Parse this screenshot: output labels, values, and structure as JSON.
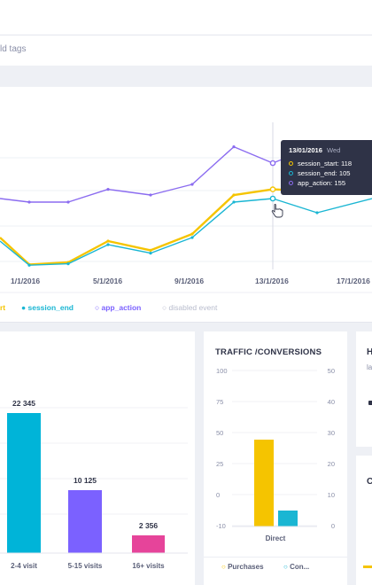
{
  "tags": {
    "placeholder_fragment": "ld tags"
  },
  "main_chart": {
    "x_tick_labels": [
      "1/1/2016",
      "5/1/2016",
      "9/1/2016",
      "13/1/2016",
      "17/1/2016"
    ],
    "legend": {
      "session_start_fragment": "rt",
      "session_end": "session_end",
      "app_action": "app_action",
      "disabled": "disabled event"
    },
    "tooltip": {
      "date": "13/01/2016",
      "day": "Wed",
      "rows": [
        {
          "label": "session_start: 118",
          "color": "#f5c400"
        },
        {
          "label": "session_end: 105",
          "color": "#1ab6d3"
        },
        {
          "label": "app_action: 155",
          "color": "#8b6cf0"
        }
      ]
    }
  },
  "colors": {
    "session_start": "#f5c400",
    "session_end": "#1ab6d3",
    "app_action": "#8b6cf0",
    "bar_cyan": "#00b4d8",
    "bar_purple": "#7b61ff",
    "bar_pink": "#e6449a",
    "disabled": "#c0c4d4"
  },
  "chart_data": [
    {
      "type": "line",
      "x": [
        "1/1/2016",
        "3/1/2016",
        "5/1/2016",
        "7/1/2016",
        "9/1/2016",
        "11/1/2016",
        "12/1/2016",
        "13/1/2016",
        "15/1/2016",
        "17/1/2016"
      ],
      "series": [
        {
          "name": "session_start",
          "values": [
            50,
            12,
            15,
            45,
            32,
            55,
            110,
            118,
            115,
            118
          ]
        },
        {
          "name": "session_end",
          "values": [
            45,
            11,
            13,
            40,
            28,
            50,
            100,
            105,
            85,
            105
          ]
        },
        {
          "name": "app_action",
          "values": [
            105,
            100,
            100,
            118,
            110,
            125,
            178,
            155,
            180,
            140
          ]
        }
      ],
      "xlabel": "",
      "ylabel": ""
    },
    {
      "type": "bar",
      "categories": [
        "2-4 visit",
        "5-15 visits",
        "16+ visits"
      ],
      "values": [
        22345,
        10125,
        2356
      ],
      "value_labels": [
        "22 345",
        "10 125",
        "2 356"
      ]
    },
    {
      "type": "bar",
      "title": "TRAFFIC /CONVERSIONS",
      "categories": [
        "Direct"
      ],
      "series": [
        {
          "name": "Purchases",
          "values": [
            45
          ]
        },
        {
          "name": "Con...",
          "values": [
            5
          ]
        }
      ],
      "y_left_ticks": [
        "100",
        "75",
        "50",
        "25",
        "0",
        "-10"
      ],
      "y_right_ticks": [
        "50",
        "40",
        "30",
        "20",
        "10",
        "0"
      ],
      "ylim": [
        -10,
        100
      ]
    }
  ],
  "visits_card": {
    "bar_labels": [
      "22 345",
      "10 125",
      "2 356"
    ],
    "categories": [
      "2-4 visit",
      "5-15 visits",
      "16+ visits"
    ]
  },
  "traffic_card": {
    "title": "TRAFFIC /CONVERSIONS",
    "y_left": [
      "100",
      "75",
      "50",
      "25",
      "0",
      "-10"
    ],
    "y_right": [
      "50",
      "40",
      "30",
      "20",
      "10",
      "0"
    ],
    "category": "Direct",
    "legend_purchases": "Purchases",
    "legend_con": "Con..."
  },
  "right_cards": {
    "top_title_fragment": "H",
    "top_sub_fragment": "la",
    "bottom_title_fragment": "C"
  }
}
